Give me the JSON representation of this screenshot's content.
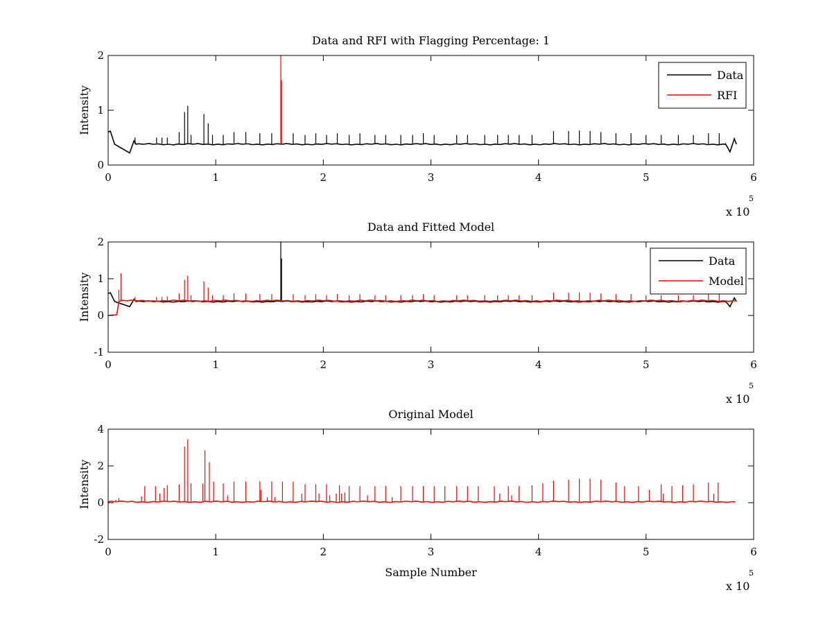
{
  "figure": {
    "background": "#ffffff",
    "colors": {
      "data": "#000000",
      "rfi": "#ff0000",
      "model": "#ff0000",
      "axes": "#000000"
    }
  },
  "chart_data": [
    {
      "type": "line",
      "title": "Data and RFI with Flagging Percentage: 1",
      "xlabel": "",
      "ylabel": "Intensity",
      "xlim": [
        0,
        600000
      ],
      "ylim": [
        0,
        2
      ],
      "x_ticks": [
        "0",
        "1",
        "2",
        "3",
        "4",
        "5",
        "6"
      ],
      "y_ticks": [
        "0",
        "1",
        "2"
      ],
      "x_exponent": {
        "base": "x 10",
        "power": "5"
      },
      "legend": {
        "position": "top-right",
        "entries": [
          {
            "label": "Data",
            "color": "#000000"
          },
          {
            "label": "RFI",
            "color": "#ff0000"
          }
        ]
      },
      "series": [
        {
          "name": "Data",
          "color": "#000000",
          "baseline": 0.38,
          "dips": [
            {
              "x": 0,
              "y": 0.6
            },
            {
              "x": 2000,
              "y": 0.62
            },
            {
              "x": 6000,
              "y": 0.38
            },
            {
              "x": 20000,
              "y": 0.22
            },
            {
              "x": 24000,
              "y": 0.44
            },
            {
              "x": 26000,
              "y": 0.38
            },
            {
              "x": 574000,
              "y": 0.38
            },
            {
              "x": 578000,
              "y": 0.24
            },
            {
              "x": 582000,
              "y": 0.48
            },
            {
              "x": 584000,
              "y": 0.38
            }
          ],
          "spikes": [
            [
              25000,
              0.5
            ],
            [
              45000,
              0.5
            ],
            [
              50000,
              0.5
            ],
            [
              55000,
              0.5
            ],
            [
              66000,
              0.6
            ],
            [
              71000,
              0.97
            ],
            [
              74000,
              1.08
            ],
            [
              77000,
              0.55
            ],
            [
              89000,
              0.93
            ],
            [
              93000,
              0.76
            ],
            [
              97000,
              0.55
            ],
            [
              107000,
              0.55
            ],
            [
              117000,
              0.6
            ],
            [
              128000,
              0.6
            ],
            [
              141000,
              0.58
            ],
            [
              152000,
              0.58
            ],
            [
              172000,
              0.58
            ],
            [
              183000,
              0.55
            ],
            [
              193000,
              0.58
            ],
            [
              203000,
              0.55
            ],
            [
              213000,
              0.58
            ],
            [
              224000,
              0.55
            ],
            [
              234000,
              0.58
            ],
            [
              248000,
              0.55
            ],
            [
              258000,
              0.55
            ],
            [
              272000,
              0.55
            ],
            [
              283000,
              0.55
            ],
            [
              293000,
              0.58
            ],
            [
              303000,
              0.55
            ],
            [
              324000,
              0.55
            ],
            [
              334000,
              0.55
            ],
            [
              350000,
              0.55
            ],
            [
              362000,
              0.55
            ],
            [
              372000,
              0.55
            ],
            [
              382000,
              0.55
            ],
            [
              394000,
              0.55
            ],
            [
              414000,
              0.62
            ],
            [
              428000,
              0.62
            ],
            [
              438000,
              0.63
            ],
            [
              448000,
              0.62
            ],
            [
              458000,
              0.6
            ],
            [
              472000,
              0.58
            ],
            [
              486000,
              0.58
            ],
            [
              500000,
              0.55
            ],
            [
              514000,
              0.55
            ],
            [
              530000,
              0.55
            ],
            [
              544000,
              0.55
            ],
            [
              558000,
              0.58
            ],
            [
              568000,
              0.58
            ]
          ]
        },
        {
          "name": "RFI",
          "color": "#ff0000",
          "spikes": [
            [
              160500,
              2.0
            ],
            [
              161200,
              1.55
            ]
          ]
        }
      ]
    },
    {
      "type": "line",
      "title": "Data and Fitted Model",
      "xlabel": "",
      "ylabel": "Intensity",
      "xlim": [
        0,
        600000
      ],
      "ylim": [
        -1,
        2
      ],
      "x_ticks": [
        "0",
        "1",
        "2",
        "3",
        "4",
        "5",
        "6"
      ],
      "y_ticks": [
        "-1",
        "0",
        "1",
        "2"
      ],
      "x_exponent": {
        "base": "x 10",
        "power": "5"
      },
      "legend": {
        "position": "top-right",
        "entries": [
          {
            "label": "Data",
            "color": "#000000"
          },
          {
            "label": "Model",
            "color": "#ff0000"
          }
        ]
      },
      "series": [
        {
          "name": "Data",
          "color": "#000000",
          "baseline": 0.38,
          "dips": [
            {
              "x": 0,
              "y": 0.6
            },
            {
              "x": 2000,
              "y": 0.62
            },
            {
              "x": 6000,
              "y": 0.38
            },
            {
              "x": 20000,
              "y": 0.24
            },
            {
              "x": 24000,
              "y": 0.44
            },
            {
              "x": 26000,
              "y": 0.38
            },
            {
              "x": 574000,
              "y": 0.38
            },
            {
              "x": 578000,
              "y": 0.24
            },
            {
              "x": 582000,
              "y": 0.48
            },
            {
              "x": 584000,
              "y": 0.38
            }
          ],
          "spikes": [
            [
              160500,
              2.0
            ],
            [
              161200,
              1.55
            ]
          ]
        },
        {
          "name": "Model",
          "color": "#ff0000",
          "baseline": 0.4,
          "start": [
            {
              "x": 0,
              "y": 0.0
            },
            {
              "x": 8000,
              "y": 0.02
            },
            {
              "x": 10000,
              "y": 0.38
            }
          ],
          "spikes": [
            [
              10000,
              0.7
            ],
            [
              12000,
              1.15
            ],
            [
              25000,
              0.5
            ],
            [
              45000,
              0.5
            ],
            [
              50000,
              0.5
            ],
            [
              55000,
              0.52
            ],
            [
              66000,
              0.6
            ],
            [
              71000,
              0.97
            ],
            [
              74000,
              1.08
            ],
            [
              77000,
              0.55
            ],
            [
              89000,
              0.93
            ],
            [
              93000,
              0.76
            ],
            [
              97000,
              0.55
            ],
            [
              107000,
              0.55
            ],
            [
              117000,
              0.6
            ],
            [
              128000,
              0.6
            ],
            [
              141000,
              0.58
            ],
            [
              152000,
              0.58
            ],
            [
              172000,
              0.58
            ],
            [
              183000,
              0.55
            ],
            [
              193000,
              0.58
            ],
            [
              203000,
              0.55
            ],
            [
              213000,
              0.58
            ],
            [
              224000,
              0.55
            ],
            [
              234000,
              0.58
            ],
            [
              248000,
              0.55
            ],
            [
              258000,
              0.55
            ],
            [
              272000,
              0.55
            ],
            [
              283000,
              0.55
            ],
            [
              293000,
              0.58
            ],
            [
              303000,
              0.55
            ],
            [
              324000,
              0.55
            ],
            [
              334000,
              0.55
            ],
            [
              350000,
              0.55
            ],
            [
              362000,
              0.55
            ],
            [
              372000,
              0.55
            ],
            [
              382000,
              0.55
            ],
            [
              394000,
              0.55
            ],
            [
              414000,
              0.62
            ],
            [
              428000,
              0.62
            ],
            [
              438000,
              0.63
            ],
            [
              448000,
              0.62
            ],
            [
              458000,
              0.6
            ],
            [
              472000,
              0.58
            ],
            [
              486000,
              0.58
            ],
            [
              500000,
              0.55
            ],
            [
              514000,
              0.55
            ],
            [
              530000,
              0.55
            ],
            [
              544000,
              0.55
            ],
            [
              558000,
              0.58
            ],
            [
              568000,
              0.58
            ]
          ]
        }
      ]
    },
    {
      "type": "line",
      "title": "Original Model",
      "xlabel": "Sample Number",
      "ylabel": "Intensity",
      "xlim": [
        0,
        600000
      ],
      "ylim": [
        -2,
        4
      ],
      "x_ticks": [
        "0",
        "1",
        "2",
        "3",
        "4",
        "5",
        "6"
      ],
      "y_ticks": [
        "-2",
        "0",
        "2",
        "4"
      ],
      "x_exponent": {
        "base": "x 10",
        "power": "5"
      },
      "series": [
        {
          "name": "",
          "color": "#ff0000",
          "baseline": 0.05,
          "x_end": 583000,
          "spikes": [
            [
              7000,
              0.15
            ],
            [
              10000,
              0.25
            ],
            [
              31000,
              0.35
            ],
            [
              34000,
              0.9
            ],
            [
              44000,
              0.9
            ],
            [
              48000,
              0.5
            ],
            [
              52000,
              0.8
            ],
            [
              55000,
              0.95
            ],
            [
              66000,
              1.0
            ],
            [
              71000,
              3.05
            ],
            [
              74000,
              3.45
            ],
            [
              77000,
              1.05
            ],
            [
              88000,
              1.05
            ],
            [
              90000,
              2.85
            ],
            [
              94000,
              2.2
            ],
            [
              98000,
              1.15
            ],
            [
              107000,
              1.05
            ],
            [
              111000,
              0.4
            ],
            [
              117000,
              1.15
            ],
            [
              128000,
              1.15
            ],
            [
              141000,
              1.15
            ],
            [
              142000,
              0.7
            ],
            [
              148000,
              0.3
            ],
            [
              152000,
              1.15
            ],
            [
              155000,
              0.3
            ],
            [
              162000,
              1.15
            ],
            [
              172000,
              1.15
            ],
            [
              180000,
              0.5
            ],
            [
              183000,
              1.0
            ],
            [
              193000,
              1.0
            ],
            [
              196000,
              0.5
            ],
            [
              203000,
              1.0
            ],
            [
              206000,
              0.4
            ],
            [
              212000,
              0.5
            ],
            [
              215000,
              0.95
            ],
            [
              217000,
              0.5
            ],
            [
              220000,
              0.55
            ],
            [
              224000,
              0.9
            ],
            [
              234000,
              0.9
            ],
            [
              241000,
              0.4
            ],
            [
              248000,
              0.9
            ],
            [
              258000,
              0.9
            ],
            [
              264000,
              0.3
            ],
            [
              272000,
              0.9
            ],
            [
              283000,
              0.9
            ],
            [
              293000,
              0.9
            ],
            [
              303000,
              0.9
            ],
            [
              313000,
              0.9
            ],
            [
              324000,
              0.9
            ],
            [
              334000,
              0.9
            ],
            [
              344000,
              0.9
            ],
            [
              359000,
              0.9
            ],
            [
              364000,
              0.5
            ],
            [
              372000,
              0.9
            ],
            [
              375000,
              0.4
            ],
            [
              382000,
              0.9
            ],
            [
              394000,
              0.95
            ],
            [
              404000,
              1.05
            ],
            [
              414000,
              1.2
            ],
            [
              428000,
              1.25
            ],
            [
              438000,
              1.3
            ],
            [
              448000,
              1.3
            ],
            [
              458000,
              1.25
            ],
            [
              472000,
              1.1
            ],
            [
              480000,
              0.9
            ],
            [
              493000,
              0.9
            ],
            [
              503000,
              0.7
            ],
            [
              514000,
              1.0
            ],
            [
              516000,
              0.5
            ],
            [
              524000,
              0.9
            ],
            [
              534000,
              0.95
            ],
            [
              544000,
              1.0
            ],
            [
              558000,
              1.1
            ],
            [
              563000,
              0.5
            ],
            [
              567000,
              1.1
            ]
          ]
        }
      ]
    }
  ]
}
